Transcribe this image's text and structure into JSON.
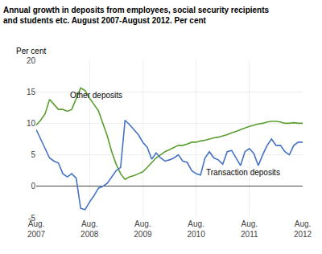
{
  "chart_data": {
    "type": "line",
    "title": "Annual growth in deposits from employees, social security recipients\nand students etc. August 2007-August 2012. Per cent",
    "ylabel": "Per cent",
    "categories": [
      "Aug.\n2007",
      null,
      null,
      null,
      null,
      null,
      null,
      null,
      null,
      null,
      null,
      null,
      "Aug.\n2008",
      null,
      null,
      null,
      null,
      null,
      null,
      null,
      null,
      null,
      null,
      null,
      "Aug.\n2009",
      null,
      null,
      null,
      null,
      null,
      null,
      null,
      null,
      null,
      null,
      null,
      "Aug.\n2010",
      null,
      null,
      null,
      null,
      null,
      null,
      null,
      null,
      null,
      null,
      null,
      "Aug.\n2011",
      null,
      null,
      null,
      null,
      null,
      null,
      null,
      null,
      null,
      null,
      null,
      "Aug.\n2012"
    ],
    "series": [
      {
        "name": "Other deposits",
        "color": "#5a9e2f",
        "values": [
          9.7,
          10.5,
          11.5,
          13.8,
          13.0,
          12.2,
          12.2,
          11.9,
          12.2,
          14.0,
          15.6,
          15.2,
          14.0,
          13.0,
          12.0,
          10.0,
          8.0,
          5.5,
          3.5,
          2.0,
          1.1,
          1.5,
          1.7,
          2.0,
          2.3,
          3.0,
          3.8,
          4.5,
          5.0,
          5.5,
          5.8,
          6.2,
          6.5,
          6.5,
          6.7,
          7.0,
          7.0,
          7.2,
          7.3,
          7.5,
          7.7,
          7.8,
          8.0,
          8.2,
          8.5,
          8.7,
          9.0,
          9.3,
          9.5,
          9.7,
          9.9,
          10.0,
          10.2,
          10.3,
          10.3,
          10.2,
          10.0,
          10.0,
          10.1,
          10.0,
          10.0
        ]
      },
      {
        "name": "Transaction deposits",
        "color": "#4472c4",
        "values": [
          9.0,
          7.5,
          6.0,
          4.5,
          4.0,
          3.7,
          2.0,
          1.5,
          2.0,
          1.3,
          -3.5,
          -3.7,
          -2.5,
          -1.5,
          -0.3,
          0.0,
          0.5,
          1.5,
          2.5,
          3.0,
          10.5,
          9.8,
          9.0,
          8.2,
          7.0,
          6.2,
          4.3,
          5.3,
          4.5,
          4.0,
          4.2,
          4.5,
          5.0,
          4.0,
          3.8,
          2.5,
          2.0,
          1.8,
          4.5,
          5.5,
          4.5,
          4.2,
          3.5,
          5.5,
          5.7,
          4.5,
          3.3,
          5.5,
          6.0,
          5.2,
          3.3,
          5.0,
          6.5,
          7.5,
          6.5,
          6.5,
          5.5,
          5.0,
          6.5,
          7.0,
          7.0
        ]
      }
    ],
    "ylim": [
      -5,
      20
    ],
    "yticks": [
      -5,
      0,
      5,
      10,
      15,
      20
    ],
    "grid": true
  }
}
